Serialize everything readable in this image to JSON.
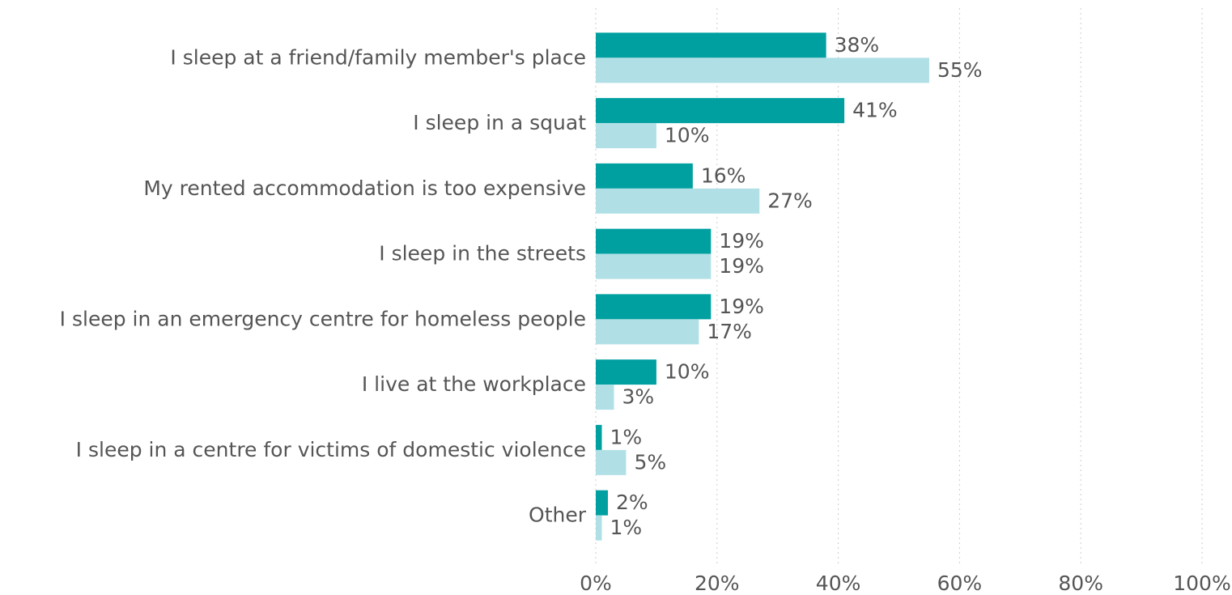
{
  "chart_data": {
    "type": "bar",
    "orientation": "horizontal",
    "categories": [
      "I sleep at a friend/family member's place",
      "I sleep in a squat",
      "My rented accommodation is too expensive",
      "I sleep in the streets",
      "I sleep in an emergency centre for homeless people",
      "I live at the workplace",
      "I sleep in a centre for victims of domestic violence",
      "Other"
    ],
    "series": [
      {
        "color": "#00a0a0",
        "values": [
          38,
          41,
          16,
          19,
          19,
          10,
          1,
          2
        ],
        "value_labels": [
          "38%",
          "41%",
          "16%",
          "19%",
          "19%",
          "10%",
          "1%",
          "2%"
        ]
      },
      {
        "color": "#b0e0e6",
        "values": [
          55,
          10,
          27,
          19,
          17,
          3,
          5,
          1
        ],
        "value_labels": [
          "55%",
          "10%",
          "27%",
          "19%",
          "17%",
          "3%",
          "5%",
          "1%"
        ]
      }
    ],
    "xlim": [
      0,
      100
    ],
    "xticks": [
      {
        "value": 0,
        "label": "0%"
      },
      {
        "value": 20,
        "label": "20%"
      },
      {
        "value": 40,
        "label": "40%"
      },
      {
        "value": 60,
        "label": "60%"
      },
      {
        "value": 80,
        "label": "80%"
      },
      {
        "value": 100,
        "label": "100%"
      }
    ],
    "grid": true
  }
}
